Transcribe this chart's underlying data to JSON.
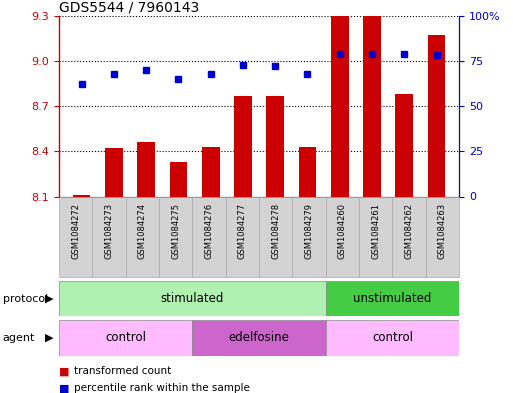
{
  "title": "GDS5544 / 7960143",
  "samples": [
    "GSM1084272",
    "GSM1084273",
    "GSM1084274",
    "GSM1084275",
    "GSM1084276",
    "GSM1084277",
    "GSM1084278",
    "GSM1084279",
    "GSM1084260",
    "GSM1084261",
    "GSM1084262",
    "GSM1084263"
  ],
  "bar_values": [
    8.11,
    8.42,
    8.46,
    8.33,
    8.43,
    8.77,
    8.77,
    8.43,
    9.3,
    9.3,
    8.78,
    9.17
  ],
  "percentile_values": [
    62,
    68,
    70,
    65,
    68,
    73,
    72,
    68,
    79,
    79,
    79,
    78
  ],
  "ylim_left": [
    8.1,
    9.3
  ],
  "ylim_right": [
    0,
    100
  ],
  "yticks_left": [
    8.1,
    8.4,
    8.7,
    9.0,
    9.3
  ],
  "yticks_right": [
    0,
    25,
    50,
    75,
    100
  ],
  "bar_color": "#cc0000",
  "dot_color": "#0000cc",
  "protocol_groups": [
    {
      "label": "stimulated",
      "start": 0,
      "end": 8,
      "color": "#b0f0b0"
    },
    {
      "label": "unstimulated",
      "start": 8,
      "end": 12,
      "color": "#44cc44"
    }
  ],
  "agent_groups": [
    {
      "label": "control",
      "start": 0,
      "end": 4,
      "color": "#ffbbff"
    },
    {
      "label": "edelfosine",
      "start": 4,
      "end": 8,
      "color": "#cc66cc"
    },
    {
      "label": "control",
      "start": 8,
      "end": 12,
      "color": "#ffbbff"
    }
  ],
  "legend_bar_color": "#cc0000",
  "legend_dot_color": "#0000cc",
  "background_color": "#ffffff",
  "tick_label_color_left": "#cc0000",
  "tick_label_color_right": "#0000cc",
  "xticklabel_bg": "#d3d3d3"
}
